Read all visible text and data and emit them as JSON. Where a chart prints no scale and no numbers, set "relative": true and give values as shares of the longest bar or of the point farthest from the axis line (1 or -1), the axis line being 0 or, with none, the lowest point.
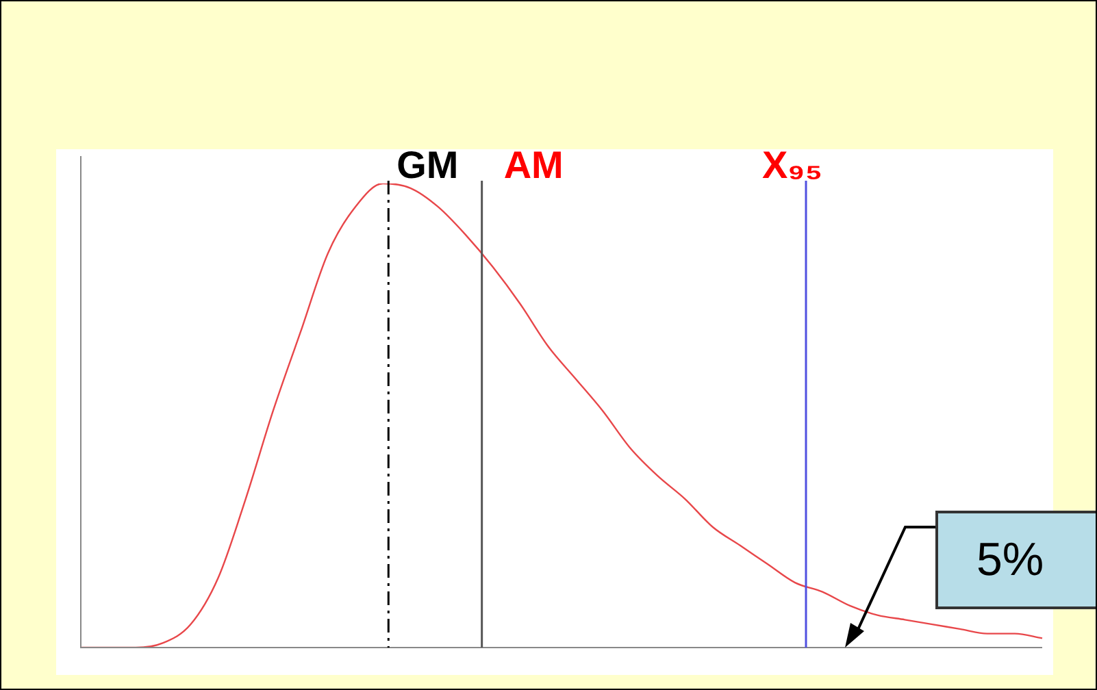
{
  "chart_data": {
    "type": "line",
    "relative": true,
    "legend": false,
    "marker": "none",
    "categories": [
      null,
      null,
      null,
      null,
      null,
      null,
      null,
      null,
      null,
      null,
      null,
      null,
      null,
      null,
      null,
      null,
      null,
      null,
      null,
      null,
      null,
      null,
      null,
      null,
      null,
      null,
      null,
      null,
      null,
      null,
      null,
      null,
      null,
      null,
      null,
      null
    ],
    "series": [
      {
        "color": "#e8474a",
        "values": [
          0,
          0,
          0,
          0.01,
          0.05,
          0.15,
          0.32,
          0.51,
          0.68,
          0.85,
          0.95,
          1.0,
          0.99,
          0.95,
          0.89,
          0.82,
          0.74,
          0.65,
          0.58,
          0.51,
          0.43,
          0.37,
          0.32,
          0.26,
          0.22,
          0.18,
          0.14,
          0.12,
          0.09,
          0.07,
          0.06,
          0.05,
          0.04,
          0.03,
          0.03,
          0.02
        ]
      }
    ],
    "annotations": [
      "GM",
      "AM",
      "X₉₅",
      "5%"
    ]
  }
}
